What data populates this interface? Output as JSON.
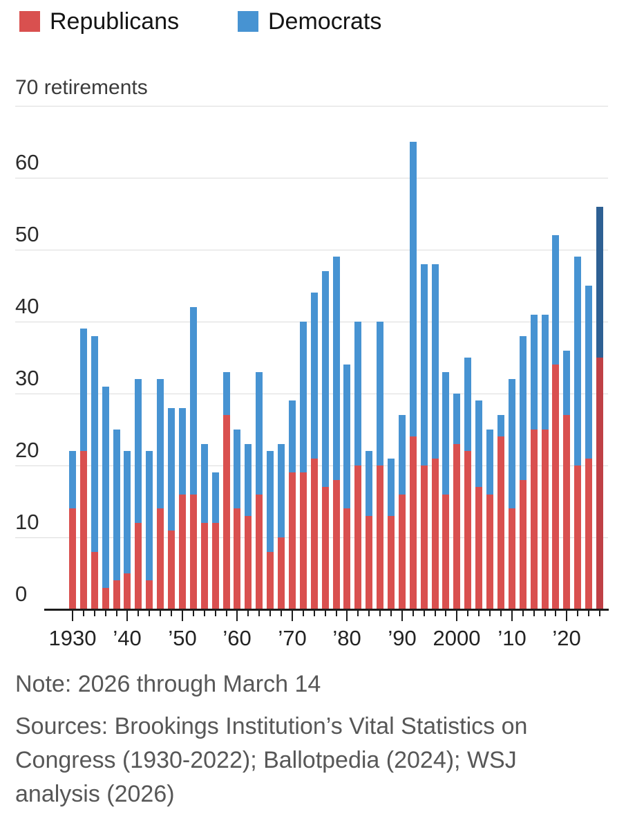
{
  "legend": {
    "republicans": "Republicans",
    "democrats": "Democrats"
  },
  "y_axis": {
    "top_label": "70 retirements",
    "tick_values": [
      0,
      10,
      20,
      30,
      40,
      50,
      60
    ],
    "gridline_values": [
      10,
      20,
      30,
      40,
      50,
      60,
      70
    ]
  },
  "x_axis": {
    "decade_labels": [
      {
        "text": "1930",
        "year": 1930
      },
      {
        "text": "’40",
        "year": 1940
      },
      {
        "text": "’50",
        "year": 1950
      },
      {
        "text": "’60",
        "year": 1960
      },
      {
        "text": "’70",
        "year": 1970
      },
      {
        "text": "’80",
        "year": 1980
      },
      {
        "text": "’90",
        "year": 1990
      },
      {
        "text": "2000",
        "year": 2000
      },
      {
        "text": "’10",
        "year": 2010
      },
      {
        "text": "’20",
        "year": 2020
      }
    ]
  },
  "note": "Note: 2026 through March 14",
  "source_lines": [
    "Sources: Brookings Institution’s Vital Statistics on",
    "Congress (1930-2022); Ballotpedia (2024); WSJ",
    "analysis (2026)"
  ],
  "colors": {
    "republican": "#d9504f",
    "democrat": "#4793d2",
    "republican_highlight": "#bf4046",
    "democrat_highlight": "#2e6093",
    "gridline": "#dcdcdc",
    "axis": "#1c1c1c"
  },
  "chart_data": {
    "type": "bar",
    "stacked": true,
    "title": "House retirements by party",
    "ylabel": "retirements",
    "ylim": [
      0,
      70
    ],
    "x_start": 1930,
    "x_step": 2,
    "highlight_year": 2026,
    "categories": [
      1930,
      1932,
      1934,
      1936,
      1938,
      1940,
      1942,
      1944,
      1946,
      1948,
      1950,
      1952,
      1954,
      1956,
      1958,
      1960,
      1962,
      1964,
      1966,
      1968,
      1970,
      1972,
      1974,
      1976,
      1978,
      1980,
      1982,
      1984,
      1986,
      1988,
      1990,
      1992,
      1994,
      1996,
      1998,
      2000,
      2002,
      2004,
      2006,
      2008,
      2010,
      2012,
      2014,
      2016,
      2018,
      2020,
      2022,
      2024,
      2026
    ],
    "series": [
      {
        "name": "Republicans",
        "values": [
          14,
          22,
          8,
          3,
          4,
          5,
          12,
          4,
          14,
          11,
          16,
          16,
          12,
          12,
          27,
          14,
          13,
          16,
          8,
          10,
          19,
          19,
          21,
          17,
          18,
          14,
          20,
          13,
          20,
          13,
          16,
          24,
          20,
          21,
          16,
          23,
          22,
          17,
          16,
          24,
          14,
          18,
          25,
          25,
          34,
          27,
          20,
          21,
          35
        ]
      },
      {
        "name": "Democrats",
        "values": [
          8,
          17,
          30,
          28,
          21,
          17,
          20,
          18,
          18,
          17,
          12,
          26,
          11,
          7,
          6,
          11,
          10,
          17,
          14,
          13,
          10,
          21,
          23,
          30,
          31,
          20,
          20,
          9,
          20,
          8,
          11,
          41,
          28,
          27,
          17,
          7,
          13,
          12,
          9,
          3,
          18,
          20,
          16,
          16,
          18,
          9,
          29,
          24,
          21
        ]
      }
    ]
  }
}
